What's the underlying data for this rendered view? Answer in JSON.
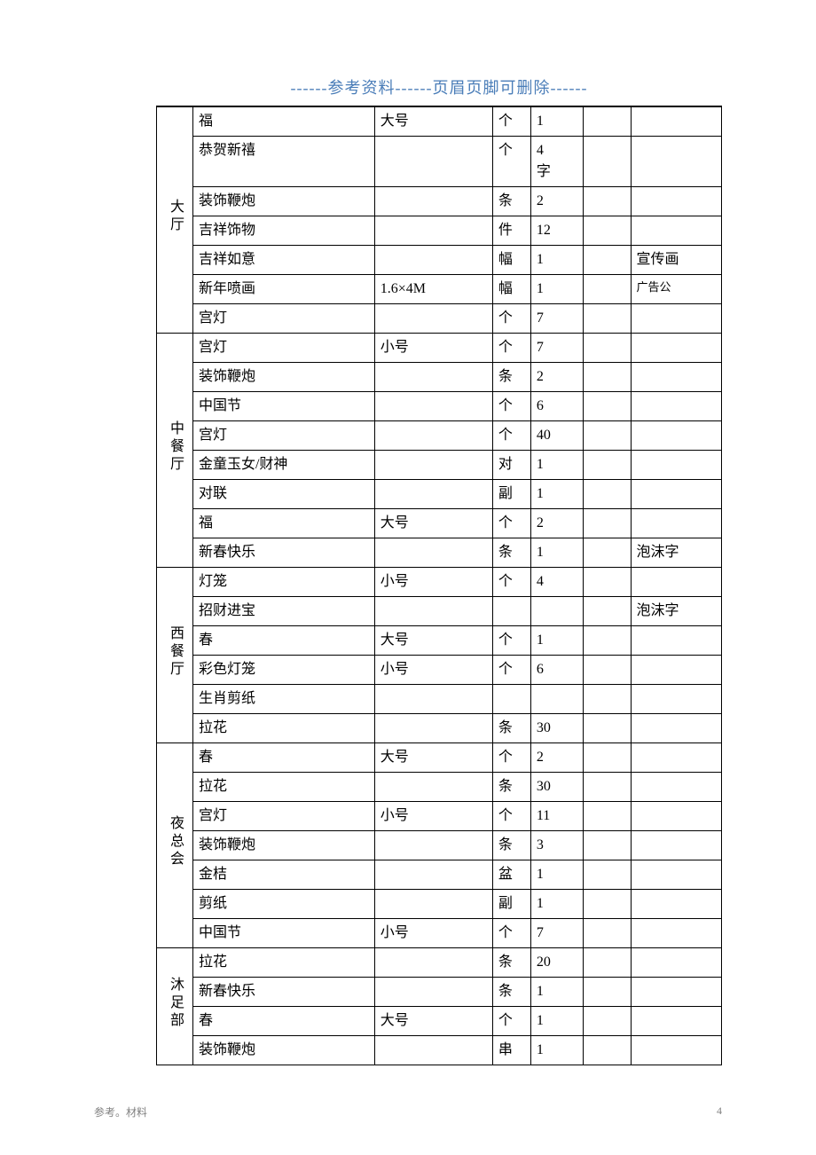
{
  "header": {
    "text": "------参考资料------页眉页脚可删除------"
  },
  "table": {
    "sections": [
      {
        "location": "大厅",
        "rows": [
          {
            "item": "福",
            "spec": "大号",
            "unit": "个",
            "qty": "1",
            "blank": "",
            "note": ""
          },
          {
            "item": "恭贺新禧",
            "spec": "",
            "unit": "个",
            "qty": "4字",
            "blank": "",
            "note": ""
          },
          {
            "item": "装饰鞭炮",
            "spec": "",
            "unit": "条",
            "qty": "2",
            "blank": "",
            "note": ""
          },
          {
            "item": "吉祥饰物",
            "spec": "",
            "unit": "件",
            "qty": "12",
            "blank": "",
            "note": ""
          },
          {
            "item": "吉祥如意",
            "spec": "",
            "unit": "幅",
            "qty": "1",
            "blank": "",
            "note": "宣传画"
          },
          {
            "item": "新年喷画",
            "spec": "1.6×4M",
            "unit": "幅",
            "qty": "1",
            "blank": "",
            "note": "广告公",
            "noteSmall": true
          },
          {
            "item": "宫灯",
            "spec": "",
            "unit": "个",
            "qty": "7",
            "blank": "",
            "note": ""
          }
        ]
      },
      {
        "location": "中餐厅",
        "rows": [
          {
            "item": "宫灯",
            "spec": "小号",
            "unit": "个",
            "qty": "7",
            "blank": "",
            "note": ""
          },
          {
            "item": "装饰鞭炮",
            "spec": "",
            "unit": "条",
            "qty": "2",
            "blank": "",
            "note": ""
          },
          {
            "item": "中国节",
            "spec": "",
            "unit": "个",
            "qty": "6",
            "blank": "",
            "note": ""
          },
          {
            "item": "宫灯",
            "spec": "",
            "unit": "个",
            "qty": "40",
            "blank": "",
            "note": ""
          },
          {
            "item": "金童玉女/财神",
            "spec": "",
            "unit": "对",
            "qty": "1",
            "blank": "",
            "note": ""
          },
          {
            "item": "对联",
            "spec": "",
            "unit": "副",
            "qty": "1",
            "blank": "",
            "note": ""
          },
          {
            "item": "福",
            "spec": "大号",
            "unit": "个",
            "qty": "2",
            "blank": "",
            "note": ""
          },
          {
            "item": "新春快乐",
            "spec": "",
            "unit": "条",
            "qty": "1",
            "blank": "",
            "note": "泡沫字"
          }
        ]
      },
      {
        "location": "西餐厅",
        "rows": [
          {
            "item": "灯笼",
            "spec": "小号",
            "unit": "个",
            "qty": "4",
            "blank": "",
            "note": ""
          },
          {
            "item": "招财进宝",
            "spec": "",
            "unit": "",
            "qty": "",
            "blank": "",
            "note": "泡沫字"
          },
          {
            "item": "春",
            "spec": "大号",
            "unit": "个",
            "qty": "1",
            "blank": "",
            "note": ""
          },
          {
            "item": "彩色灯笼",
            "spec": "小号",
            "unit": "个",
            "qty": "6",
            "blank": "",
            "note": ""
          },
          {
            "item": "生肖剪纸",
            "spec": "",
            "unit": "",
            "qty": "",
            "blank": "",
            "note": ""
          },
          {
            "item": "拉花",
            "spec": "",
            "unit": "条",
            "qty": "30",
            "blank": "",
            "note": ""
          }
        ]
      },
      {
        "location": "夜总会",
        "rows": [
          {
            "item": "春",
            "spec": "大号",
            "unit": "个",
            "qty": "2",
            "blank": "",
            "note": ""
          },
          {
            "item": "拉花",
            "spec": "",
            "unit": "条",
            "qty": "30",
            "blank": "",
            "note": ""
          },
          {
            "item": "宫灯",
            "spec": "小号",
            "unit": "个",
            "qty": "11",
            "blank": "",
            "note": ""
          },
          {
            "item": "装饰鞭炮",
            "spec": "",
            "unit": "条",
            "qty": "3",
            "blank": "",
            "note": ""
          },
          {
            "item": "金桔",
            "spec": "",
            "unit": "盆",
            "qty": "1",
            "blank": "",
            "note": ""
          },
          {
            "item": "剪纸",
            "spec": "",
            "unit": "副",
            "qty": "1",
            "blank": "",
            "note": ""
          },
          {
            "item": "中国节",
            "spec": "小号",
            "unit": "个",
            "qty": "7",
            "blank": "",
            "note": ""
          }
        ]
      },
      {
        "location": "沐足部",
        "rows": [
          {
            "item": "拉花",
            "spec": "",
            "unit": "条",
            "qty": "20",
            "blank": "",
            "note": ""
          },
          {
            "item": "新春快乐",
            "spec": "",
            "unit": "条",
            "qty": "1",
            "blank": "",
            "note": ""
          },
          {
            "item": "春",
            "spec": "大号",
            "unit": "个",
            "qty": "1",
            "blank": "",
            "note": ""
          },
          {
            "item": "装饰鞭炮",
            "spec": "",
            "unit": "串",
            "qty": "1",
            "blank": "",
            "note": ""
          }
        ]
      }
    ]
  },
  "footer": {
    "left": "参考。材料",
    "pageNum": "4"
  },
  "styling": {
    "headerColor": "#4a7db8",
    "borderColor": "#000000",
    "textColor": "#000000",
    "footerColor": "#808080",
    "backgroundColor": "#ffffff",
    "bodyFontSize": 16,
    "headerFontSize": 18,
    "footerFontSize": 12
  }
}
